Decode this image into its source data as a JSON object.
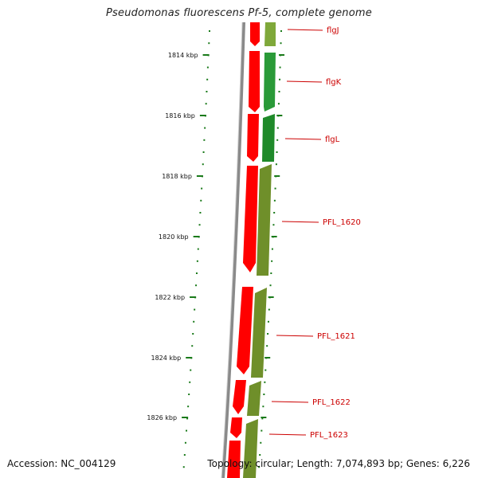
{
  "title": "Pseudomonas fluorescens Pf-5, complete genome",
  "footer": {
    "accession": "Accession: NC_004129",
    "summary": "Topology: circular; Length: 7,074,893 bp; Genes: 6,226"
  },
  "colors": {
    "backbone": "#8a8a8a",
    "gene_forward": "#ff0000",
    "gene_reverse_dark": "#1f8a2a",
    "gene_reverse_olive": "#6f8f2a",
    "tick": "#1a7a1a",
    "label": "#cc0000"
  },
  "ticks": [
    {
      "label": "1814 kbp"
    },
    {
      "label": "1816 kbp"
    },
    {
      "label": "1818 kbp"
    },
    {
      "label": "1820 kbp"
    },
    {
      "label": "1822 kbp"
    },
    {
      "label": "1824 kbp"
    },
    {
      "label": "1826 kbp"
    }
  ],
  "genes": [
    {
      "name": "flgJ"
    },
    {
      "name": "flgK"
    },
    {
      "name": "flgL"
    },
    {
      "name": "PFL_1620"
    },
    {
      "name": "PFL_1621"
    },
    {
      "name": "PFL_1622"
    },
    {
      "name": "PFL_1623"
    }
  ]
}
